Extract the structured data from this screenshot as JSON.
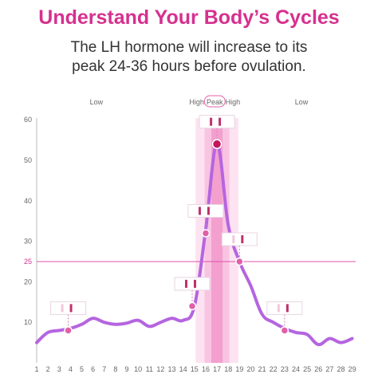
{
  "header": {
    "title": "Understand Your Body’s Cycles",
    "subtitle_line1": "The LH hormone will increase to its",
    "subtitle_line2": "peak 24-36 hours before ovulation."
  },
  "colors": {
    "title": "#d6308f",
    "line": "#b565e0",
    "reference_line": "#e050a8",
    "marker": "#e060a8",
    "peak_marker": "#c2185b",
    "band_light": "#fde3f1",
    "band_mid": "#f9c4e2",
    "band_dark": "#f3a0cf",
    "test_line": "#c0306a"
  },
  "chart_data": {
    "type": "line",
    "title": "",
    "xlabel": "",
    "ylabel": "",
    "x": [
      1,
      2,
      3,
      4,
      5,
      6,
      7,
      8,
      9,
      10,
      11,
      12,
      13,
      14,
      15,
      16,
      17,
      18,
      19,
      20,
      21,
      22,
      23,
      24,
      25,
      26,
      27,
      28,
      29
    ],
    "y": [
      5,
      7.5,
      8,
      8.5,
      9.5,
      11,
      10,
      9.5,
      9.8,
      10.5,
      9,
      10,
      11,
      10.5,
      14,
      33,
      54,
      34,
      25,
      19,
      12,
      10,
      8.5,
      7.5,
      7,
      4.5,
      6,
      5,
      6
    ],
    "ylim": [
      0,
      60
    ],
    "yticks": [
      10,
      20,
      25,
      30,
      40,
      50,
      60
    ],
    "grid": false,
    "reference_line": {
      "value": 25,
      "label": "25"
    },
    "phases": [
      {
        "label": "Low",
        "x": 6.3
      },
      {
        "label": "High",
        "x": 15.2
      },
      {
        "label": "Peak",
        "x": 16.8
      },
      {
        "label": "High",
        "x": 18.4
      },
      {
        "label": "Low",
        "x": 24.5
      }
    ],
    "shaded_bands": [
      {
        "x_from": 15.1,
        "x_to": 18.9,
        "level": "light"
      },
      {
        "x_from": 15.9,
        "x_to": 18.1,
        "level": "mid"
      },
      {
        "x_from": 16.5,
        "x_to": 17.5,
        "level": "dark"
      }
    ],
    "markers": [
      {
        "x": 3.8,
        "y": 8,
        "strip_lines": 1
      },
      {
        "x": 14.8,
        "y": 14,
        "strip_lines": 2
      },
      {
        "x": 16.0,
        "y": 32,
        "strip_lines": 2
      },
      {
        "x": 17.0,
        "y": 54,
        "strip_lines": 2,
        "peak": true
      },
      {
        "x": 19.0,
        "y": 25,
        "strip_lines": 1
      },
      {
        "x": 23.0,
        "y": 8,
        "strip_lines": 1
      }
    ]
  }
}
